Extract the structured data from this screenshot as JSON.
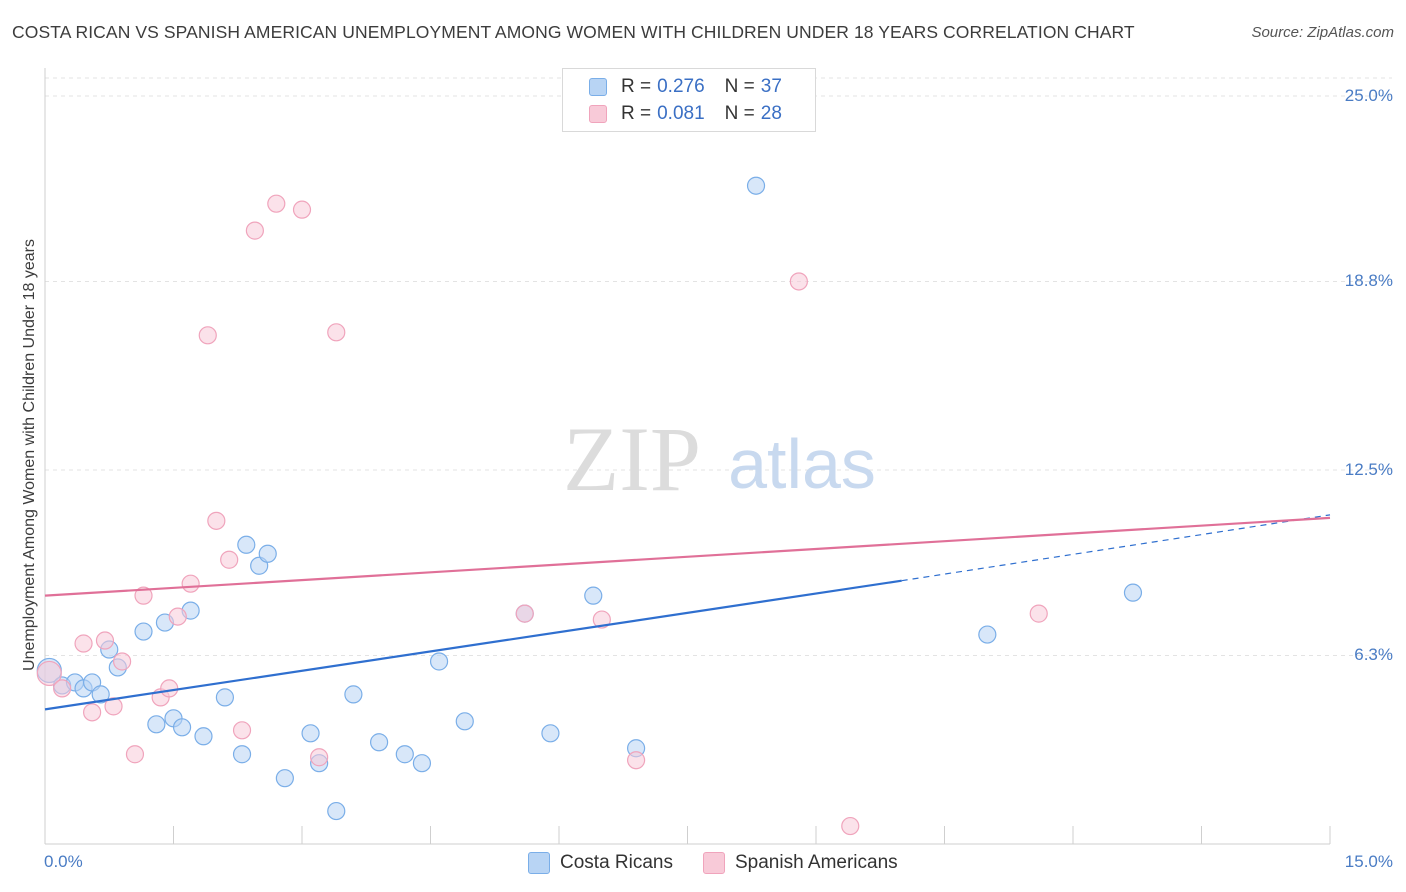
{
  "title": "COSTA RICAN VS SPANISH AMERICAN UNEMPLOYMENT AMONG WOMEN WITH CHILDREN UNDER 18 YEARS CORRELATION CHART",
  "source": "Source: ZipAtlas.com",
  "watermark": {
    "zip": "ZIP",
    "atlas": "atlas"
  },
  "legend": {
    "rows": [
      {
        "r_label": "R =",
        "r_value": "0.276",
        "n_label": "N =",
        "n_value": "37"
      },
      {
        "r_label": "R =",
        "r_value": "0.081",
        "n_label": "N =",
        "n_value": "28"
      }
    ]
  },
  "chart_data": {
    "type": "scatter",
    "title": "COSTA RICAN VS SPANISH AMERICAN UNEMPLOYMENT AMONG WOMEN WITH CHILDREN UNDER 18 YEARS CORRELATION CHART",
    "xlabel": "",
    "ylabel": "Unemployment Among Women with Children Under 18 years",
    "xlim": [
      0,
      15
    ],
    "ylim": [
      0,
      25.6
    ],
    "x_tick_labels": [
      "0.0%",
      "15.0%"
    ],
    "y_ticks": [
      6.3,
      12.5,
      18.8,
      25.0
    ],
    "y_tick_labels": [
      "6.3%",
      "12.5%",
      "18.8%",
      "25.0%"
    ],
    "grid": true,
    "legend_position": "top-center",
    "series": [
      {
        "name": "Costa Ricans",
        "color": "#7aaee8",
        "fill": "#b8d4f4",
        "trend_color": "#2f6fcf",
        "trend": {
          "x0": 0.0,
          "y0": 4.5,
          "x1": 10.0,
          "y1": 8.8,
          "dash_x1": 15.0,
          "dash_y1": 11.0
        },
        "points": [
          [
            0.05,
            5.8
          ],
          [
            0.2,
            5.3
          ],
          [
            0.35,
            5.4
          ],
          [
            0.45,
            5.2
          ],
          [
            0.55,
            5.4
          ],
          [
            0.65,
            5.0
          ],
          [
            0.75,
            6.5
          ],
          [
            0.85,
            5.9
          ],
          [
            1.15,
            7.1
          ],
          [
            1.3,
            4.0
          ],
          [
            1.4,
            7.4
          ],
          [
            1.5,
            4.2
          ],
          [
            1.6,
            3.9
          ],
          [
            1.7,
            7.8
          ],
          [
            1.85,
            3.6
          ],
          [
            2.1,
            4.9
          ],
          [
            2.3,
            3.0
          ],
          [
            2.35,
            10.0
          ],
          [
            2.5,
            9.3
          ],
          [
            2.6,
            9.7
          ],
          [
            2.8,
            2.2
          ],
          [
            3.1,
            3.7
          ],
          [
            3.2,
            2.7
          ],
          [
            3.4,
            1.1
          ],
          [
            3.6,
            5.0
          ],
          [
            3.9,
            3.4
          ],
          [
            4.2,
            3.0
          ],
          [
            4.4,
            2.7
          ],
          [
            4.6,
            6.1
          ],
          [
            4.9,
            4.1
          ],
          [
            5.6,
            7.7
          ],
          [
            5.9,
            3.7
          ],
          [
            6.4,
            8.3
          ],
          [
            6.9,
            3.2
          ],
          [
            8.3,
            22.0
          ],
          [
            11.0,
            7.0
          ],
          [
            12.7,
            8.4
          ]
        ]
      },
      {
        "name": "Spanish Americans",
        "color": "#f0a4bc",
        "fill": "#f8cad8",
        "trend_color": "#e07098",
        "trend": {
          "x0": 0.0,
          "y0": 8.3,
          "x1": 15.0,
          "y1": 10.9
        },
        "points": [
          [
            0.05,
            5.7
          ],
          [
            0.2,
            5.2
          ],
          [
            0.45,
            6.7
          ],
          [
            0.55,
            4.4
          ],
          [
            0.7,
            6.8
          ],
          [
            0.8,
            4.6
          ],
          [
            0.9,
            6.1
          ],
          [
            1.05,
            3.0
          ],
          [
            1.15,
            8.3
          ],
          [
            1.35,
            4.9
          ],
          [
            1.45,
            5.2
          ],
          [
            1.55,
            7.6
          ],
          [
            1.7,
            8.7
          ],
          [
            1.9,
            17.0
          ],
          [
            2.0,
            10.8
          ],
          [
            2.15,
            9.5
          ],
          [
            2.3,
            3.8
          ],
          [
            2.45,
            20.5
          ],
          [
            2.7,
            21.4
          ],
          [
            3.0,
            21.2
          ],
          [
            3.2,
            2.9
          ],
          [
            3.4,
            17.1
          ],
          [
            5.6,
            7.7
          ],
          [
            6.5,
            7.5
          ],
          [
            6.9,
            2.8
          ],
          [
            8.8,
            18.8
          ],
          [
            9.4,
            0.6
          ],
          [
            11.6,
            7.7
          ]
        ]
      }
    ]
  }
}
